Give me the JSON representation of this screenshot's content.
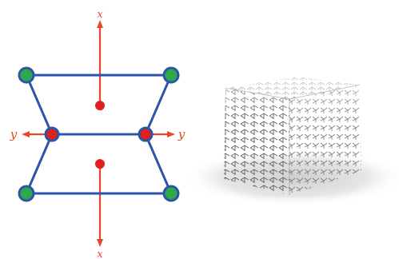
{
  "colors": {
    "frame": "#2b55a8",
    "node_fill": "#2fa84a",
    "arrow": "#e8482a",
    "joint": "#e0201c",
    "lattice": "#6f6f6f",
    "shadow": "#d9d9d9"
  },
  "diagram": {
    "labels": {
      "x_top": "x",
      "x_bottom": "x",
      "y_left": "y",
      "y_right": "y"
    },
    "nodes": [
      "top-left",
      "top-right",
      "bottom-left",
      "bottom-right"
    ],
    "joints": [
      "middle-left",
      "middle-right",
      "center-top",
      "center-bottom"
    ]
  },
  "render": {
    "description_visible": false
  }
}
